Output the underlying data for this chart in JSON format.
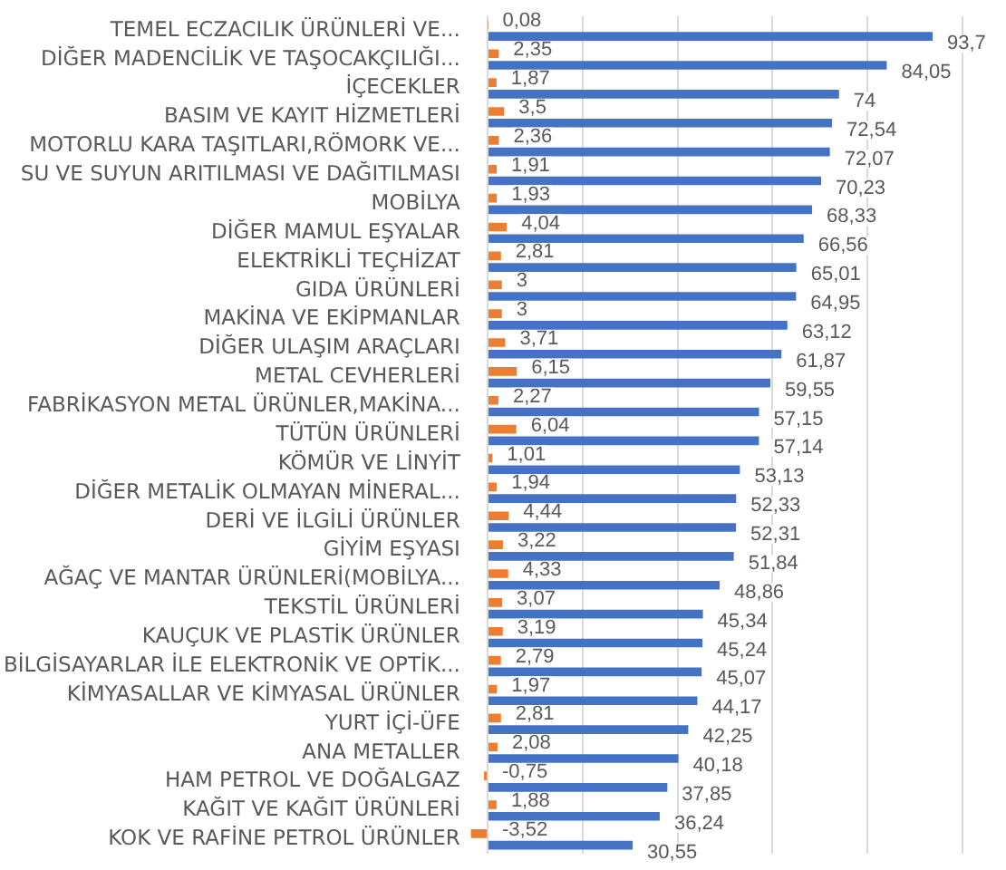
{
  "chart_data": {
    "type": "bar",
    "orientation": "horizontal",
    "categories": [
      "TEMEL ECZACILIK ÜRÜNLERİ VE...",
      "DİĞER MADENCİLİK VE TAŞOCAKÇILIĞI...",
      "İÇECEKLER",
      "BASIM VE KAYIT HİZMETLERİ",
      "MOTORLU KARA TAŞITLARI,RÖMORK VE...",
      "SU VE SUYUN ARITILMASI VE DAĞITILMASI",
      "MOBİLYA",
      "DİĞER MAMUL EŞYALAR",
      "ELEKTRİKLİ TEÇHİZAT",
      "GIDA ÜRÜNLERİ",
      "MAKİNA VE EKİPMANLAR",
      "DİĞER ULAŞIM ARAÇLARI",
      "METAL CEVHERLERİ",
      "FABRİKASYON METAL ÜRÜNLER,MAKİNA...",
      "TÜTÜN ÜRÜNLERİ",
      "KÖMÜR VE LİNYİT",
      "DİĞER METALİK OLMAYAN MİNERAL...",
      "DERİ VE İLGİLİ ÜRÜNLER",
      "GİYİM EŞYASI",
      "AĞAÇ VE MANTAR ÜRÜNLERİ(MOBİLYA...",
      "TEKSTİL ÜRÜNLERİ",
      "KAUÇUK VE PLASTİK ÜRÜNLER",
      "BİLGİSAYARLAR İLE ELEKTRONİK VE OPTİK...",
      "KİMYASALLAR VE KİMYASAL ÜRÜNLER",
      "YURT İÇİ-ÜFE",
      "ANA METALLER",
      "HAM PETROL VE DOĞALGAZ",
      "KAĞIT VE KAĞIT ÜRÜNLERİ",
      "KOK VE RAFİNE PETROL ÜRÜNLER"
    ],
    "series": [
      {
        "color": "#ed7d31",
        "values": [
          0.08,
          2.35,
          1.87,
          3.5,
          2.36,
          1.91,
          1.93,
          4.04,
          2.81,
          3,
          3,
          3.71,
          6.15,
          2.27,
          6.04,
          1.01,
          1.94,
          4.44,
          3.22,
          4.33,
          3.07,
          3.19,
          2.79,
          1.97,
          2.81,
          2.08,
          -0.75,
          1.88,
          -3.52
        ],
        "value_labels": [
          "0,08",
          "2,35",
          "1,87",
          "3,5",
          "2,36",
          "1,91",
          "1,93",
          "4,04",
          "2,81",
          "3",
          "3",
          "3,71",
          "6,15",
          "2,27",
          "6,04",
          "1,01",
          "1,94",
          "4,44",
          "3,22",
          "4,33",
          "3,07",
          "3,19",
          "2,79",
          "1,97",
          "2,81",
          "2,08",
          "-0,75",
          "1,88",
          "-3,52"
        ]
      },
      {
        "color": "#4472c4",
        "values": [
          93.7,
          84.05,
          74,
          72.54,
          72.07,
          70.23,
          68.33,
          66.56,
          65.01,
          64.95,
          63.12,
          61.87,
          59.55,
          57.15,
          57.14,
          53.13,
          52.33,
          52.31,
          51.84,
          48.86,
          45.34,
          45.24,
          45.07,
          44.17,
          42.25,
          40.18,
          37.85,
          36.24,
          30.55
        ],
        "value_labels": [
          "93,7",
          "84,05",
          "74",
          "72,54",
          "72,07",
          "70,23",
          "68,33",
          "66,56",
          "65,01",
          "64,95",
          "63,12",
          "61,87",
          "59,55",
          "57,15",
          "57,14",
          "53,13",
          "52,33",
          "52,31",
          "51,84",
          "48,86",
          "45,34",
          "45,24",
          "45,07",
          "44,17",
          "42,25",
          "40,18",
          "37,85",
          "36,24",
          "30,55"
        ]
      }
    ],
    "xlim": [
      -5,
      100
    ],
    "xticks": [
      {
        "value": 0,
        "label": null
      },
      {
        "value": 20,
        "label": null
      },
      {
        "value": 40,
        "label": null
      },
      {
        "value": 60,
        "label": null
      },
      {
        "value": 80,
        "label": null
      },
      {
        "value": 100,
        "label": null
      }
    ],
    "tick_labels": "y",
    "grid": "x",
    "legend": false
  }
}
